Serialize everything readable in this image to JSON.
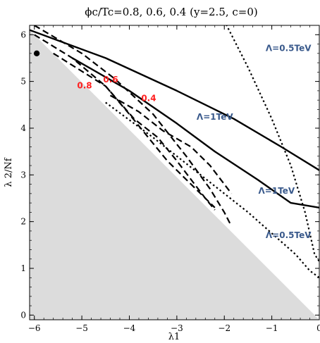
{
  "chart_data": {
    "type": "line",
    "title": "ϕc/Tc=0.8, 0.6, 0.4 (y=2.5, c=0)",
    "xlabel": "λ1",
    "ylabel": "λ 2/Nf",
    "xlim": [
      -6.1,
      0
    ],
    "ylim": [
      -0.1,
      6.2
    ],
    "xticks": [
      -6,
      -5,
      -4,
      -3,
      -2,
      -1,
      0
    ],
    "yticks": [
      0,
      1,
      2,
      3,
      4,
      5,
      6
    ],
    "xtick_labels": [
      "−6",
      "−5",
      "−4",
      "−3",
      "−2",
      "−1",
      "0"
    ],
    "ytick_labels": [
      "0",
      "1",
      "2",
      "3",
      "4",
      "5",
      "6"
    ],
    "grid": false,
    "colors": {
      "excluded_region": "#dcdcdc",
      "curves": "#000000",
      "phase_labels": "#ff2020",
      "cutoff_labels": "#3a5a8c"
    },
    "excluded_region": {
      "vertices": [
        [
          -6.1,
          6.1
        ],
        [
          -6.1,
          -0.1
        ],
        [
          0,
          -0.1
        ]
      ]
    },
    "point": {
      "x": -5.95,
      "y": 5.6
    },
    "series": [
      {
        "style": "solid",
        "points": [
          [
            -6.1,
            6.1
          ],
          [
            -4.5,
            5.5
          ],
          [
            -3.0,
            4.8
          ],
          [
            -1.8,
            4.2
          ],
          [
            -0.8,
            3.6
          ],
          [
            0,
            3.1
          ]
        ]
      },
      {
        "style": "solid",
        "points": [
          [
            -5.2,
            5.5
          ],
          [
            -4.0,
            4.8
          ],
          [
            -3.0,
            4.1
          ],
          [
            -2.2,
            3.5
          ],
          [
            -1.3,
            2.9
          ],
          [
            -0.6,
            2.4
          ],
          [
            0,
            2.3
          ]
        ]
      },
      {
        "style": "dotted",
        "points": [
          [
            -2.0,
            6.3
          ],
          [
            -1.5,
            5.3
          ],
          [
            -1.0,
            4.2
          ],
          [
            -0.6,
            3.2
          ],
          [
            -0.3,
            2.2
          ],
          [
            -0.1,
            1.3
          ],
          [
            0,
            1.15
          ]
        ]
      },
      {
        "style": "dotted",
        "points": [
          [
            -4.5,
            4.55
          ],
          [
            -3.5,
            3.8
          ],
          [
            -2.5,
            3.0
          ],
          [
            -1.5,
            2.2
          ],
          [
            -0.5,
            1.3
          ],
          [
            -0.2,
            0.95
          ],
          [
            0,
            0.8
          ]
        ]
      },
      {
        "style": "dashed",
        "points": [
          [
            -6.0,
            6.2
          ],
          [
            -5.0,
            5.6
          ],
          [
            -4.3,
            5.05
          ],
          [
            -3.5,
            4.3
          ],
          [
            -2.8,
            3.4
          ],
          [
            -2.3,
            2.7
          ],
          [
            -2.0,
            2.2
          ],
          [
            -1.85,
            1.9
          ]
        ]
      },
      {
        "style": "dashed",
        "points": [
          [
            -6.0,
            6.0
          ],
          [
            -5.2,
            5.5
          ],
          [
            -4.5,
            4.9
          ],
          [
            -4.0,
            4.3
          ],
          [
            -3.6,
            3.8
          ],
          [
            -3.2,
            3.3
          ],
          [
            -2.8,
            2.9
          ],
          [
            -2.4,
            2.5
          ],
          [
            -2.2,
            2.3
          ]
        ]
      },
      {
        "style": "dashed",
        "points": [
          [
            -5.6,
            5.6
          ],
          [
            -4.5,
            4.9
          ],
          [
            -3.9,
            4.2
          ],
          [
            -3.4,
            3.8
          ],
          [
            -3.0,
            3.3
          ],
          [
            -2.7,
            2.9
          ],
          [
            -2.4,
            2.5
          ],
          [
            -2.2,
            2.25
          ]
        ]
      },
      {
        "style": "dashed",
        "points": [
          [
            -4.4,
            4.7
          ],
          [
            -3.8,
            4.35
          ],
          [
            -3.3,
            3.95
          ],
          [
            -2.7,
            3.6
          ],
          [
            -2.3,
            3.2
          ],
          [
            -1.85,
            2.6
          ]
        ]
      }
    ],
    "annotations": [
      {
        "text": "0.8",
        "x": -5.1,
        "y": 4.85,
        "kind": "phase"
      },
      {
        "text": "0.6",
        "x": -4.55,
        "y": 4.98,
        "kind": "phase"
      },
      {
        "text": "0.4",
        "x": -3.75,
        "y": 4.58,
        "kind": "phase"
      },
      {
        "text": "Λ=0.5TeV",
        "x": -0.65,
        "y": 5.65,
        "kind": "cutoff"
      },
      {
        "text": "Λ=1TeV",
        "x": -2.2,
        "y": 4.18,
        "kind": "cutoff"
      },
      {
        "text": "Λ=1TeV",
        "x": -0.9,
        "y": 2.6,
        "kind": "cutoff"
      },
      {
        "text": "Λ=0.5TeV",
        "x": -0.65,
        "y": 1.65,
        "kind": "cutoff"
      }
    ]
  }
}
